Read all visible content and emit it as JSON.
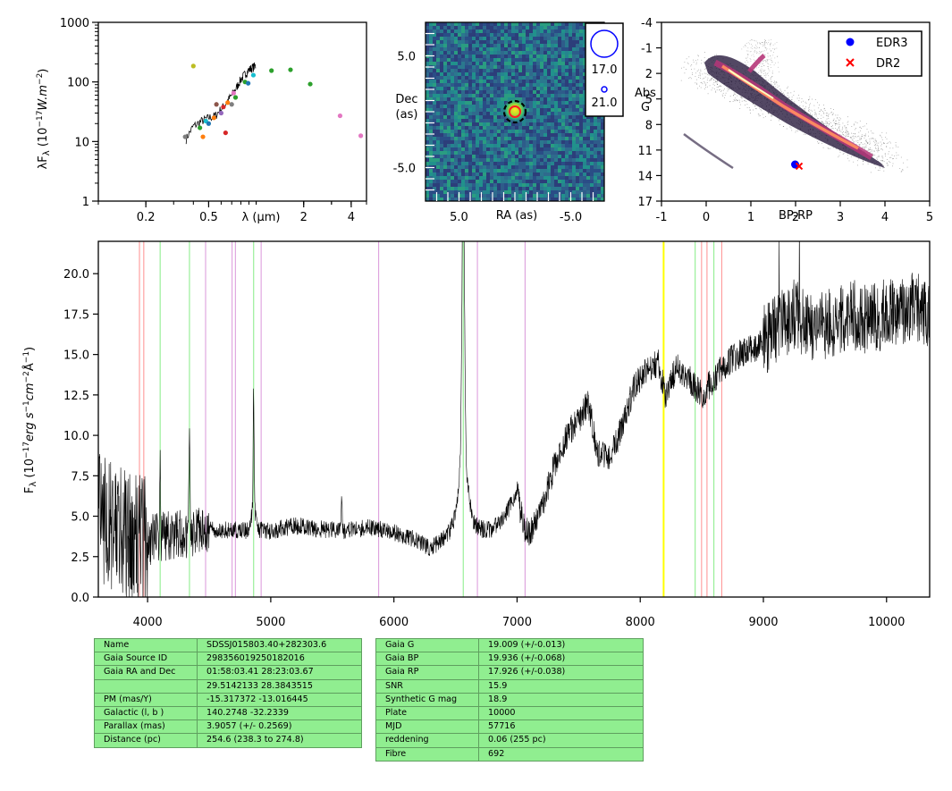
{
  "chart_data": [
    {
      "type": "scatter",
      "name": "sed",
      "xlabel": "λ (μm)",
      "ylabel": "λF_λ (10^-17 W.m^-2)",
      "xscale": "log",
      "yscale": "log",
      "xlim": [
        0.1,
        5.0
      ],
      "ylim": [
        1,
        1000
      ],
      "xticks": [
        0.2,
        0.5,
        2,
        4
      ],
      "xtick_labels": [
        "0.2",
        "0.5",
        "2",
        "4"
      ],
      "yticks": [
        1,
        10,
        100,
        1000
      ],
      "ytick_labels": [
        "1",
        "10",
        "100",
        "1000"
      ],
      "points": [
        {
          "x": 0.355,
          "y": 12,
          "color": "#7f7f7f"
        },
        {
          "x": 0.4,
          "y": 185,
          "color": "#bcbd22"
        },
        {
          "x": 0.44,
          "y": 17,
          "color": "#2ca02c"
        },
        {
          "x": 0.46,
          "y": 12,
          "color": "#ff7f0e"
        },
        {
          "x": 0.48,
          "y": 22,
          "color": "#17becf"
        },
        {
          "x": 0.5,
          "y": 20,
          "color": "#1f77b4"
        },
        {
          "x": 0.54,
          "y": 25,
          "color": "#ff7f0e"
        },
        {
          "x": 0.56,
          "y": 42,
          "color": "#8c564b"
        },
        {
          "x": 0.6,
          "y": 30,
          "color": "#9467bd"
        },
        {
          "x": 0.62,
          "y": 38,
          "color": "#d62728"
        },
        {
          "x": 0.64,
          "y": 14,
          "color": "#d62728"
        },
        {
          "x": 0.66,
          "y": 45,
          "color": "#ff7f0e"
        },
        {
          "x": 0.7,
          "y": 42,
          "color": "#7f7f7f"
        },
        {
          "x": 0.72,
          "y": 65,
          "color": "#e377c2"
        },
        {
          "x": 0.74,
          "y": 55,
          "color": "#2ca02c"
        },
        {
          "x": 0.85,
          "y": 100,
          "color": "#2ca02c"
        },
        {
          "x": 0.89,
          "y": 95,
          "color": "#1f77b4"
        },
        {
          "x": 0.96,
          "y": 130,
          "color": "#17becf"
        },
        {
          "x": 1.25,
          "y": 155,
          "color": "#2ca02c"
        },
        {
          "x": 1.65,
          "y": 160,
          "color": "#2ca02c"
        },
        {
          "x": 2.2,
          "y": 92,
          "color": "#2ca02c"
        },
        {
          "x": 3.4,
          "y": 27,
          "color": "#e377c2"
        },
        {
          "x": 4.6,
          "y": 12.5,
          "color": "#e377c2"
        }
      ],
      "line": {
        "color": "#000000",
        "x": [
          0.36,
          0.4,
          0.45,
          0.5,
          0.55,
          0.6,
          0.65,
          0.7,
          0.75,
          0.8,
          0.85,
          0.9,
          0.95,
          1.0
        ],
        "y": [
          11,
          18,
          22,
          25,
          27,
          35,
          45,
          60,
          80,
          110,
          135,
          160,
          175,
          190
        ]
      }
    },
    {
      "type": "heatmap",
      "name": "image",
      "xlabel": "RA (as)",
      "ylabel": "Dec (as)",
      "xlim": [
        8,
        -8
      ],
      "ylim": [
        -8,
        8
      ],
      "xticks": [
        5.0,
        -5.0
      ],
      "xtick_labels": [
        "5.0",
        "-5.0"
      ],
      "yticks": [
        5.0,
        -5.0
      ],
      "ytick_labels": [
        "5.0",
        "-5.0"
      ],
      "target": {
        "x": 0,
        "y": 0
      },
      "legend": [
        "17.0",
        "21.0"
      ]
    },
    {
      "type": "scatter",
      "name": "hrd",
      "xlabel": "BP-RP",
      "ylabel": "Abs G",
      "xlim": [
        -1,
        5
      ],
      "ylim": [
        17,
        -4
      ],
      "xticks": [
        -1,
        0,
        1,
        2,
        3,
        4,
        5
      ],
      "xtick_labels": [
        "-1",
        "0",
        "1",
        "2",
        "3",
        "4",
        "5"
      ],
      "yticks": [
        -4,
        -1,
        2,
        5,
        8,
        11,
        14,
        17
      ],
      "ytick_labels": [
        "-4",
        "-1",
        "2",
        "5",
        "8",
        "11",
        "14",
        "17"
      ],
      "legend": "top-right",
      "series": [
        {
          "name": "EDR3",
          "color": "#0000ff",
          "marker": "circle",
          "x": [
            1.99
          ],
          "y": [
            12.7
          ]
        },
        {
          "name": "DR2",
          "color": "#ff0000",
          "marker": "x",
          "x": [
            2.08
          ],
          "y": [
            12.9
          ]
        }
      ]
    },
    {
      "type": "line",
      "name": "spectrum",
      "xlabel": "",
      "ylabel": "F_λ (10^-17 erg s^-1 cm^-2 Å^-1)",
      "xlim": [
        3600,
        10350
      ],
      "ylim": [
        0,
        22
      ],
      "xticks": [
        4000,
        5000,
        6000,
        7000,
        8000,
        9000,
        10000
      ],
      "xtick_labels": [
        "4000",
        "5000",
        "6000",
        "7000",
        "8000",
        "9000",
        "10000"
      ],
      "yticks": [
        0,
        2.5,
        5,
        7.5,
        10,
        12.5,
        15,
        17.5,
        20
      ],
      "ytick_labels": [
        "0.0",
        "2.5",
        "5.0",
        "7.5",
        "10.0",
        "12.5",
        "15.0",
        "17.5",
        "20.0"
      ],
      "continuum": [
        [
          3600,
          5.0
        ],
        [
          3800,
          4.0
        ],
        [
          4000,
          3.5
        ],
        [
          4200,
          3.8
        ],
        [
          4500,
          4.2
        ],
        [
          5000,
          4.1
        ],
        [
          5200,
          4.4
        ],
        [
          5400,
          4.2
        ],
        [
          5600,
          4.1
        ],
        [
          5800,
          4.3
        ],
        [
          6000,
          4.0
        ],
        [
          6150,
          3.6
        ],
        [
          6300,
          3.0
        ],
        [
          6450,
          4.0
        ],
        [
          6550,
          5.2
        ],
        [
          6700,
          4.2
        ],
        [
          6800,
          4.2
        ],
        [
          6900,
          5.0
        ],
        [
          7000,
          6.5
        ],
        [
          7050,
          4.4
        ],
        [
          7100,
          3.8
        ],
        [
          7200,
          5.5
        ],
        [
          7300,
          8.0
        ],
        [
          7400,
          10.0
        ],
        [
          7500,
          11.0
        ],
        [
          7580,
          12.0
        ],
        [
          7650,
          9.0
        ],
        [
          7750,
          8.5
        ],
        [
          7850,
          10.5
        ],
        [
          7950,
          13.0
        ],
        [
          8050,
          14.0
        ],
        [
          8150,
          14.5
        ],
        [
          8200,
          12.5
        ],
        [
          8300,
          14.2
        ],
        [
          8400,
          13.5
        ],
        [
          8500,
          12.5
        ],
        [
          8600,
          13.5
        ],
        [
          8700,
          14.5
        ],
        [
          8800,
          15.0
        ],
        [
          8950,
          15.5
        ],
        [
          9100,
          16.5
        ],
        [
          9250,
          17.5
        ],
        [
          9400,
          16.5
        ],
        [
          9550,
          17.0
        ],
        [
          9700,
          17.5
        ],
        [
          9850,
          17.2
        ],
        [
          10000,
          17.5
        ],
        [
          10200,
          18.0
        ],
        [
          10350,
          17.5
        ]
      ],
      "emission_lines": [
        {
          "x": 4101,
          "h": 4.5
        },
        {
          "x": 4340,
          "h": 6
        },
        {
          "x": 4861,
          "h": 7.5
        },
        {
          "x": 5577,
          "h": 2
        },
        {
          "x": 6563,
          "h": 18
        }
      ],
      "vlines": [
        {
          "x": 3934,
          "color": "#ff9999"
        },
        {
          "x": 3969,
          "color": "#ff9999"
        },
        {
          "x": 4102,
          "color": "#90ee90"
        },
        {
          "x": 4340,
          "color": "#90ee90"
        },
        {
          "x": 4471,
          "color": "#dda0dd"
        },
        {
          "x": 4686,
          "color": "#dda0dd"
        },
        {
          "x": 4713,
          "color": "#dda0dd"
        },
        {
          "x": 4861,
          "color": "#90ee90"
        },
        {
          "x": 4922,
          "color": "#dda0dd"
        },
        {
          "x": 5876,
          "color": "#dda0dd"
        },
        {
          "x": 6563,
          "color": "#90ee90"
        },
        {
          "x": 6678,
          "color": "#dda0dd"
        },
        {
          "x": 7065,
          "color": "#dda0dd"
        },
        {
          "x": 8190,
          "color": "#ffff00"
        },
        {
          "x": 8446,
          "color": "#90ee90"
        },
        {
          "x": 8498,
          "color": "#ff9999"
        },
        {
          "x": 8542,
          "color": "#ff9999"
        },
        {
          "x": 8598,
          "color": "#90ee90"
        },
        {
          "x": 8662,
          "color": "#ff9999"
        }
      ]
    }
  ],
  "info_table_left": [
    {
      "label": "Name",
      "value": "SDSSJ015803.40+282303.6"
    },
    {
      "label": "Gaia Source ID",
      "value": "298356019250182016"
    },
    {
      "label": "Gaia RA and Dec",
      "value": "01:58:03.41    28:23:03.67"
    },
    {
      "label": "",
      "value": "29.5142133    28.3843515"
    },
    {
      "label": "PM (mas/Y)",
      "value": "-15.317372    -13.016445"
    },
    {
      "label": "Galactic (l, b )",
      "value": "140.2748    -32.2339"
    },
    {
      "label": "Parallax (mas)",
      "value": "3.9057 (+/- 0.2569)"
    },
    {
      "label": "Distance (pc)",
      "value": "254.6 (238.3 to 274.8)"
    }
  ],
  "info_table_right": [
    {
      "label": "Gaia G",
      "value": "19.009 (+/-0.013)"
    },
    {
      "label": "Gaia BP",
      "value": "19.936 (+/-0.068)"
    },
    {
      "label": "Gaia RP",
      "value": "17.926 (+/-0.038)"
    },
    {
      "label": "SNR",
      "value": "15.9"
    },
    {
      "label": "Synthetic G mag",
      "value": "18.9"
    },
    {
      "label": "Plate",
      "value": "10000"
    },
    {
      "label": "MJD",
      "value": "57716"
    },
    {
      "label": "reddening",
      "value": "0.06 (255 pc)"
    },
    {
      "label": "Fibre",
      "value": "692"
    }
  ]
}
